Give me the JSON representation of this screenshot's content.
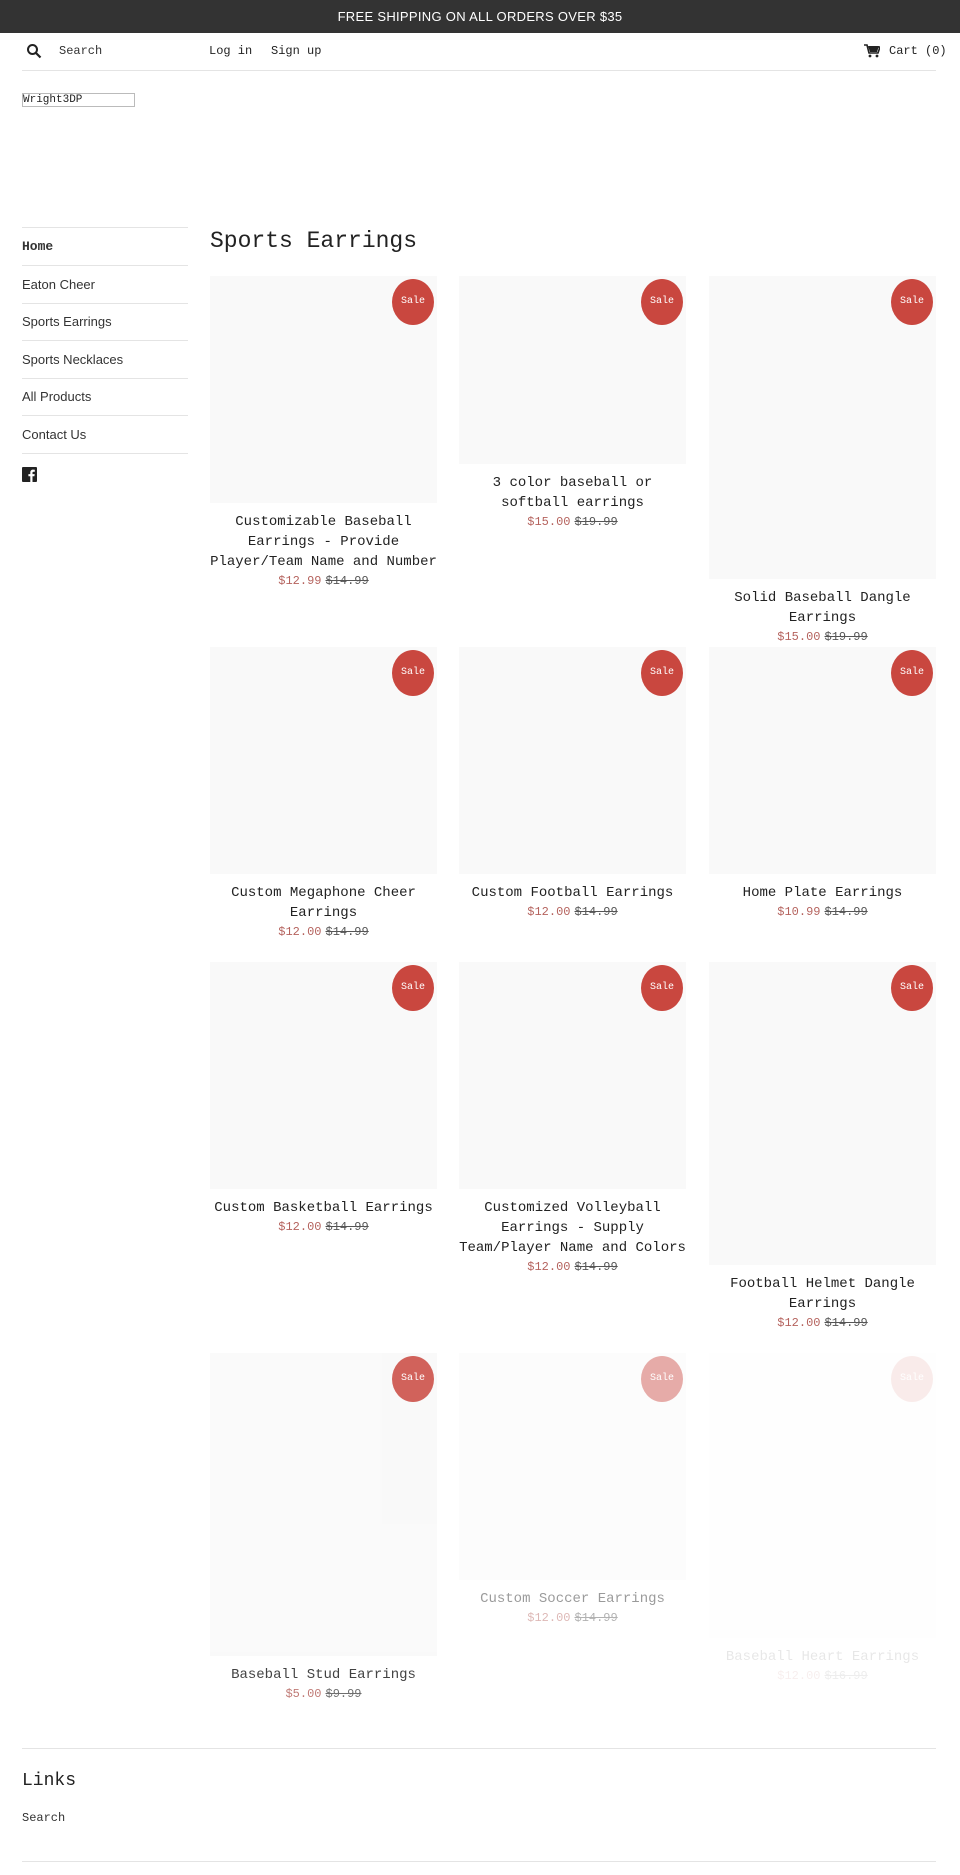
{
  "announcement": "FREE SHIPPING ON ALL ORDERS OVER $35",
  "header": {
    "search": "Search",
    "login": "Log in",
    "signup": "Sign up",
    "cart": "Cart (0)"
  },
  "logo": "Wright3DP",
  "sidebar": [
    "Home",
    "Eaton Cheer",
    "Sports Earrings",
    "Sports Necklaces",
    "All Products",
    "Contact Us"
  ],
  "collection_title": "Sports Earrings",
  "badge": "Sale",
  "products": [
    {
      "title": "Customizable Baseball Earrings - Provide Player/Team Name and Number",
      "price": "$12.99",
      "compare": "$14.99"
    },
    {
      "title": "3 color baseball or softball earrings",
      "price": "$15.00",
      "compare": "$19.99"
    },
    {
      "title": "Solid Baseball Dangle Earrings",
      "price": "$15.00",
      "compare": "$19.99"
    },
    {
      "title": "Custom Megaphone Cheer Earrings",
      "price": "$12.00",
      "compare": "$14.99"
    },
    {
      "title": "Custom Football Earrings",
      "price": "$12.00",
      "compare": "$14.99"
    },
    {
      "title": "Home Plate Earrings",
      "price": "$10.99",
      "compare": "$14.99"
    },
    {
      "title": "Custom Basketball Earrings",
      "price": "$12.00",
      "compare": "$14.99"
    },
    {
      "title": "Customized Volleyball Earrings - Supply Team/Player Name and Colors",
      "price": "$12.00",
      "compare": "$14.99"
    },
    {
      "title": "Football Helmet Dangle Earrings",
      "price": "$12.00",
      "compare": "$14.99"
    },
    {
      "title": "Baseball Stud Earrings",
      "price": "$5.00",
      "compare": "$9.99"
    },
    {
      "title": "Custom Soccer Earrings",
      "price": "$12.00",
      "compare": "$14.99"
    },
    {
      "title": "Baseball Heart Earrings",
      "price": "$12.00",
      "compare": "$16.99"
    }
  ],
  "footer": {
    "heading": "Links",
    "links": [
      "Search"
    ]
  }
}
